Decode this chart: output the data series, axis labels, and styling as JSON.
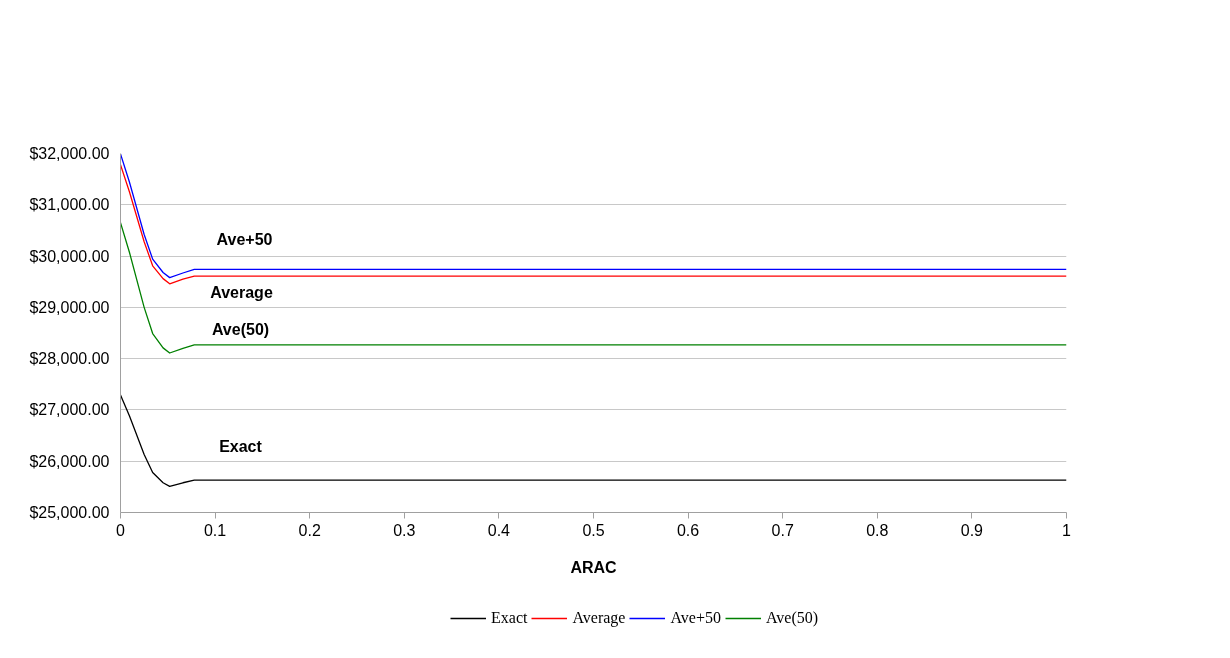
{
  "chart_data": {
    "type": "line",
    "xlabel": "ARAC",
    "x": [
      0,
      0.0095,
      0.025,
      0.034,
      0.045,
      0.052,
      0.066,
      0.078,
      1
    ],
    "series": [
      {
        "name": "Exact",
        "color": "#000000",
        "values": [
          27290,
          26880,
          26130,
          25780,
          25580,
          25510,
          25580,
          25630,
          25630
        ]
      },
      {
        "name": "Average",
        "color": "#ff0000",
        "values": [
          31780,
          31250,
          30280,
          29810,
          29560,
          29460,
          29550,
          29610,
          29610
        ]
      },
      {
        "name": "Ave+50",
        "color": "#0000ff",
        "values": [
          31990,
          31440,
          30420,
          29940,
          29680,
          29580,
          29670,
          29740,
          29740
        ]
      },
      {
        "name": "Ave(50)",
        "color": "#008000",
        "values": [
          30650,
          30070,
          29000,
          28490,
          28210,
          28110,
          28200,
          28270,
          28270
        ]
      }
    ],
    "xlim": [
      0,
      1
    ],
    "xticks": [
      0,
      0.1,
      0.2,
      0.3,
      0.4,
      0.5,
      0.6,
      0.7,
      0.8,
      0.9,
      1
    ],
    "ylim": [
      25000,
      32000
    ],
    "yticks": [
      {
        "value": 25000,
        "label": "$25,000.00"
      },
      {
        "value": 26000,
        "label": "$26,000.00"
      },
      {
        "value": 27000,
        "label": "$27,000.00"
      },
      {
        "value": 28000,
        "label": "$28,000.00"
      },
      {
        "value": 29000,
        "label": "$29,000.00"
      },
      {
        "value": 30000,
        "label": "$30,000.00"
      },
      {
        "value": 31000,
        "label": "$31,000.00"
      },
      {
        "value": 32000,
        "label": "$32,000.00"
      }
    ],
    "annotations": [
      "Ave+50",
      "Average",
      "Ave(50)",
      "Exact"
    ],
    "grid": "y",
    "legend": "bottom",
    "marker": "none",
    "line_style": "solid"
  }
}
